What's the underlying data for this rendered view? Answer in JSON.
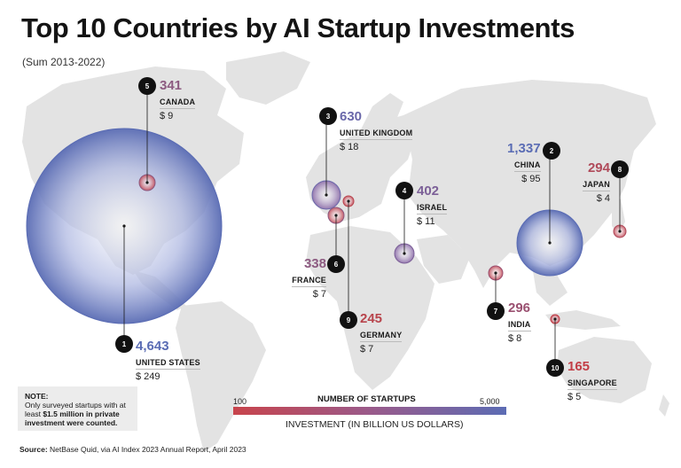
{
  "title": "Top 10 Countries by AI Startup Investments",
  "subtitle": "(Sum 2013-2022)",
  "colors": {
    "low": "#c8444c",
    "mid": "#9a5a8a",
    "high": "#5c6cb4",
    "land": "#e3e3e3",
    "rank_badge": "#111111"
  },
  "countries": [
    {
      "rank": "1",
      "name": "UNITED STATES",
      "startups": "4,643",
      "investment": "$ 249",
      "color": "#5a6cb4"
    },
    {
      "rank": "2",
      "name": "CHINA",
      "startups": "1,337",
      "investment": "$ 95",
      "color": "#5a6cb4"
    },
    {
      "rank": "3",
      "name": "UNITED KINGDOM",
      "startups": "630",
      "investment": "$ 18",
      "color": "#6a68aa"
    },
    {
      "rank": "4",
      "name": "ISRAEL",
      "startups": "402",
      "investment": "$ 11",
      "color": "#7c6098"
    },
    {
      "rank": "5",
      "name": "CANADA",
      "startups": "341",
      "investment": "$ 9",
      "color": "#8c5a80"
    },
    {
      "rank": "6",
      "name": "FRANCE",
      "startups": "338",
      "investment": "$ 7",
      "color": "#8c5a80"
    },
    {
      "rank": "7",
      "name": "INDIA",
      "startups": "296",
      "investment": "$ 8",
      "color": "#9a5070"
    },
    {
      "rank": "8",
      "name": "JAPAN",
      "startups": "294",
      "investment": "$ 4",
      "color": "#b04a5a"
    },
    {
      "rank": "9",
      "name": "GERMANY",
      "startups": "245",
      "investment": "$ 7",
      "color": "#b8444c"
    },
    {
      "rank": "10",
      "name": "SINGAPORE",
      "startups": "165",
      "investment": "$ 5",
      "color": "#c23e46"
    }
  ],
  "legend": {
    "title": "NUMBER OF STARTUPS",
    "min": "100",
    "max": "5,000",
    "investment_label": "INVESTMENT (IN BILLION US DOLLARS)"
  },
  "note": {
    "heading": "NOTE:",
    "text_before": "Only surveyed startups with at least ",
    "emphasis": "$1.5 million in private investment were counted."
  },
  "source": {
    "label": "Source:",
    "text": "NetBase Quid, via AI Index 2023 Annual Report, April 2023"
  }
}
